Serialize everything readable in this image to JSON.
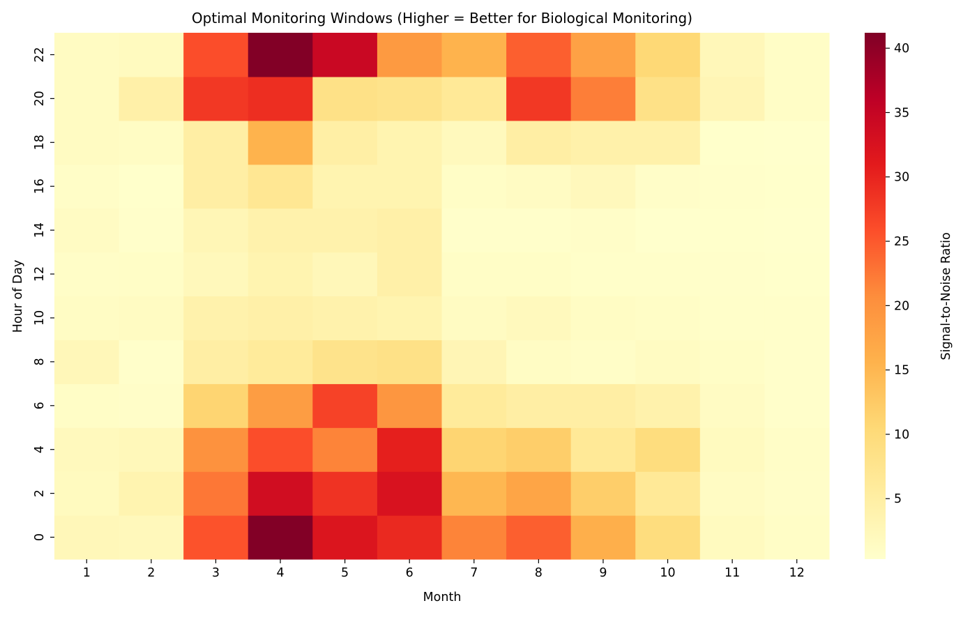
{
  "chart_data": {
    "type": "heatmap",
    "title": "Optimal Monitoring Windows (Higher = Better for Biological Monitoring)",
    "xlabel": "Month",
    "ylabel": "Hour of Day",
    "colorbar_label": "Signal-to-Noise Ratio",
    "colormap": "YlOrRd",
    "x_categories": [
      "1",
      "2",
      "3",
      "4",
      "5",
      "6",
      "7",
      "8",
      "9",
      "10",
      "11",
      "12"
    ],
    "y_categories": [
      "0",
      "2",
      "4",
      "6",
      "8",
      "10",
      "12",
      "14",
      "16",
      "18",
      "20",
      "22"
    ],
    "values": [
      [
        2.5,
        2.3,
        25.5,
        41.0,
        32.0,
        29.5,
        21.5,
        24.5,
        16.0,
        9.5,
        1.8,
        1.0
      ],
      [
        1.8,
        3.5,
        22.5,
        33.5,
        28.5,
        32.5,
        15.0,
        17.5,
        12.0,
        6.5,
        1.3,
        0.8
      ],
      [
        2.0,
        2.4,
        20.0,
        26.0,
        21.5,
        30.5,
        11.0,
        12.0,
        6.5,
        9.5,
        1.8,
        0.9
      ],
      [
        1.0,
        0.8,
        11.0,
        18.5,
        27.0,
        19.5,
        6.0,
        5.0,
        5.0,
        4.0,
        1.4,
        0.5
      ],
      [
        2.5,
        0.5,
        5.0,
        6.0,
        8.0,
        8.5,
        3.0,
        1.2,
        0.9,
        1.5,
        1.0,
        0.5
      ],
      [
        1.2,
        1.5,
        4.0,
        4.5,
        4.0,
        3.5,
        1.5,
        2.0,
        1.2,
        1.0,
        0.6,
        0.6
      ],
      [
        0.9,
        1.0,
        2.3,
        3.5,
        2.5,
        4.5,
        1.0,
        1.0,
        0.7,
        0.6,
        0.5,
        0.4
      ],
      [
        1.3,
        0.5,
        2.8,
        4.0,
        4.0,
        4.5,
        0.5,
        0.5,
        0.8,
        0.3,
        0.4,
        0.3
      ],
      [
        0.9,
        0.4,
        5.0,
        7.0,
        3.5,
        3.5,
        1.0,
        1.4,
        2.2,
        0.8,
        0.5,
        0.4
      ],
      [
        1.5,
        1.2,
        5.0,
        15.5,
        4.8,
        3.5,
        2.0,
        5.0,
        4.3,
        4.2,
        0.4,
        0.3
      ],
      [
        1.5,
        4.5,
        28.0,
        29.0,
        8.5,
        8.0,
        6.5,
        28.0,
        22.0,
        8.5,
        3.0,
        1.0
      ],
      [
        1.5,
        1.8,
        26.0,
        41.0,
        34.5,
        19.0,
        15.5,
        24.5,
        18.0,
        10.5,
        2.5,
        1.0
      ]
    ],
    "colorbar": {
      "range": [
        0.3,
        41.2
      ],
      "ticks": [
        5,
        10,
        15,
        20,
        25,
        30,
        35,
        40
      ]
    },
    "grid": false,
    "legend": "colorbar-right"
  }
}
